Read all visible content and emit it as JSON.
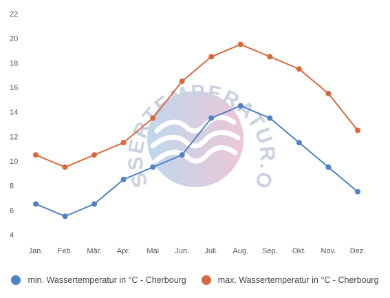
{
  "chart_data": {
    "type": "line",
    "categories": [
      "Jan.",
      "Feb.",
      "Mär.",
      "Apr.",
      "Mai",
      "Jun.",
      "Juli.",
      "Aug.",
      "Sep.",
      "Okt.",
      "Nov.",
      "Dez."
    ],
    "series": [
      {
        "name": "min. Wassertemperatur in °C - Cherbourg",
        "color": "#4f81c7",
        "values": [
          6.5,
          5.5,
          6.5,
          8.5,
          9.5,
          10.5,
          13.5,
          14.5,
          13.5,
          11.5,
          9.5,
          7.5
        ]
      },
      {
        "name": "max. Wassertemperatur in °C - Cherbourg",
        "color": "#d9693a",
        "values": [
          10.5,
          9.5,
          10.5,
          11.5,
          13.5,
          16.5,
          18.5,
          19.5,
          18.5,
          17.5,
          15.5,
          12.5
        ]
      }
    ],
    "ylim": [
      4,
      22
    ],
    "yticks": [
      4,
      6,
      8,
      10,
      12,
      14,
      16,
      18,
      20,
      22
    ],
    "grid": false,
    "legend": "bottom",
    "xlabel": "",
    "ylabel": "",
    "title": ""
  },
  "watermark": {
    "text": "WASSERTEMPERATUR.ORG",
    "icon": "waves-logo-icon"
  }
}
